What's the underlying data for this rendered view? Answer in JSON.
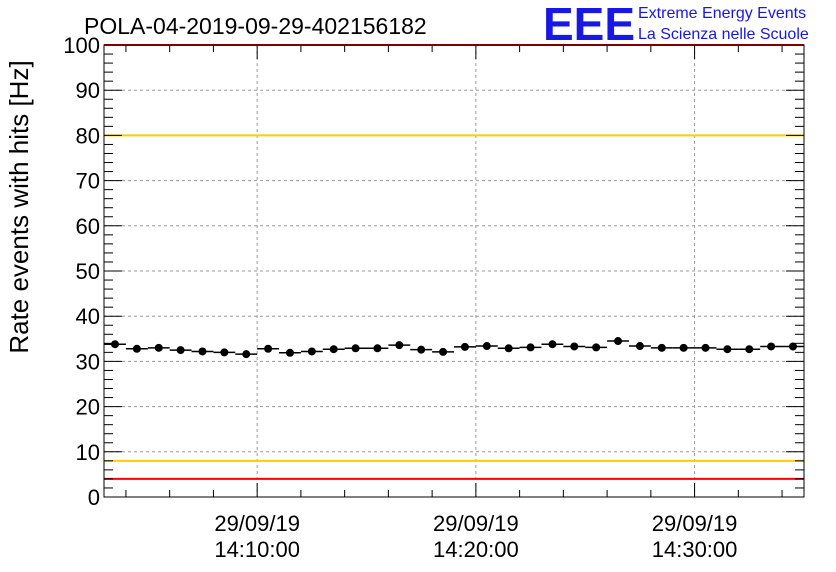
{
  "chart_data": {
    "type": "scatter",
    "title": "POLA-04-2019-09-29-402156182",
    "xlabel": "",
    "ylabel": "Rate events with hits [Hz]",
    "ylim": [
      0,
      100
    ],
    "xlim": [
      "2019-09-29 14:03:30",
      "2019-09-29 14:34:30"
    ],
    "y_ticks": [
      0,
      10,
      20,
      30,
      40,
      50,
      60,
      70,
      80,
      90,
      100
    ],
    "y_tick_labels": [
      "0",
      "10",
      "20",
      "30",
      "40",
      "50",
      "60",
      "70",
      "80",
      "90",
      "100"
    ],
    "x_ticks": [
      {
        "time": "2019-09-29 14:10:00",
        "date_label": "29/09/19",
        "time_label": "14:10:00"
      },
      {
        "time": "2019-09-29 14:20:00",
        "date_label": "29/09/19",
        "time_label": "14:20:00"
      },
      {
        "time": "2019-09-29 14:30:00",
        "date_label": "29/09/19",
        "time_label": "14:30:00"
      }
    ],
    "grid": true,
    "series": [
      {
        "color": "#000000",
        "x": [
          "2019-09-29 14:03:30",
          "2019-09-29 14:04:30",
          "2019-09-29 14:05:30",
          "2019-09-29 14:06:30",
          "2019-09-29 14:07:30",
          "2019-09-29 14:08:30",
          "2019-09-29 14:09:30",
          "2019-09-29 14:10:30",
          "2019-09-29 14:11:30",
          "2019-09-29 14:12:30",
          "2019-09-29 14:13:30",
          "2019-09-29 14:14:30",
          "2019-09-29 14:15:30",
          "2019-09-29 14:16:30",
          "2019-09-29 14:17:30",
          "2019-09-29 14:18:30",
          "2019-09-29 14:19:30",
          "2019-09-29 14:20:30",
          "2019-09-29 14:21:30",
          "2019-09-29 14:22:30",
          "2019-09-29 14:23:30",
          "2019-09-29 14:24:30",
          "2019-09-29 14:25:30",
          "2019-09-29 14:26:30",
          "2019-09-29 14:27:30",
          "2019-09-29 14:28:30",
          "2019-09-29 14:29:30",
          "2019-09-29 14:30:30",
          "2019-09-29 14:31:30",
          "2019-09-29 14:32:30",
          "2019-09-29 14:33:30",
          "2019-09-29 14:34:30"
        ],
        "values": [
          33.8,
          32.8,
          33.0,
          32.5,
          32.2,
          32.0,
          31.6,
          32.8,
          31.9,
          32.2,
          32.7,
          32.9,
          32.9,
          33.6,
          32.6,
          32.1,
          33.2,
          33.4,
          32.9,
          33.1,
          33.8,
          33.3,
          33.1,
          34.5,
          33.4,
          33.0,
          33.0,
          33.0,
          32.7,
          32.7,
          33.3,
          33.3
        ],
        "marker": "circle",
        "x_error_minutes": 0.5
      }
    ],
    "reference_lines": [
      {
        "value": 100,
        "color": "#ff0000"
      },
      {
        "value": 80,
        "color": "#ffcc00"
      },
      {
        "value": 8,
        "color": "#ffcc00"
      },
      {
        "value": 4,
        "color": "#ff0000"
      }
    ]
  },
  "logo": {
    "main_text": "EEE",
    "line1": "Extreme Energy Events",
    "line2": "La Scienza nelle Scuole",
    "color": "#1717e6"
  }
}
